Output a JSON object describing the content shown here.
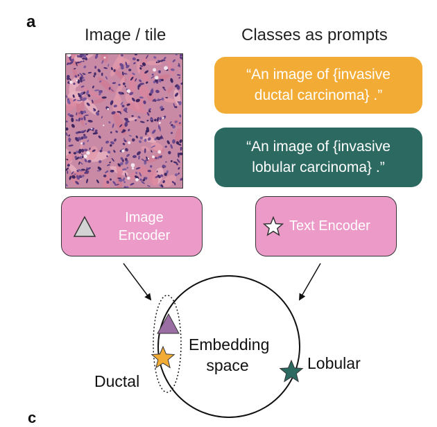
{
  "panel": {
    "letter": "a"
  },
  "titles": {
    "image": "Image / tile",
    "prompts": "Classes as prompts"
  },
  "prompts": [
    {
      "text": "“An image of {invasive ductal carcinoma} .”",
      "color": "#f2ac36"
    },
    {
      "text": "“An image of {invasive lobular carcinoma} .”",
      "color": "#2c6a61"
    }
  ],
  "encoders": {
    "image": {
      "label": "Image Encoder",
      "color": "#ec9ac7",
      "icon": "triangle-icon"
    },
    "text": {
      "label": "Text Encoder",
      "color": "#ec9ac7",
      "icon": "star-icon"
    }
  },
  "embedding": {
    "label": "Embedding space",
    "ductal": "Ductal",
    "lobular": "Lobular",
    "colors": {
      "triangle": "#9b6ea3",
      "ductal_star": "#f2ac36",
      "lobular_star": "#2c6a61"
    }
  },
  "next_panel": {
    "letter": "c"
  }
}
